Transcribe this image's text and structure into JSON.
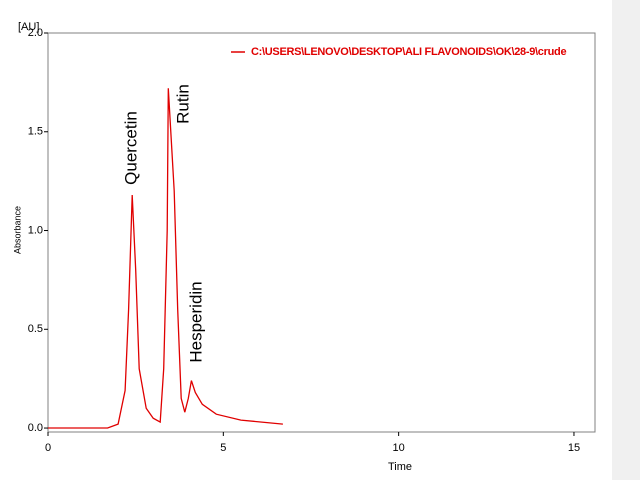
{
  "chart_data": {
    "type": "line",
    "y_unit": "[AU]",
    "y_label": "Absorbance",
    "x_label": "Time",
    "annotations": [
      "Quercetin",
      "Rutin",
      "Hesperidin"
    ],
    "x": [
      0,
      1.7,
      2.0,
      2.2,
      2.3,
      2.4,
      2.5,
      2.6,
      2.8,
      3.0,
      3.2,
      3.3,
      3.4,
      3.43,
      3.6,
      3.7,
      3.8,
      3.9,
      4.0,
      4.09,
      4.2,
      4.4,
      4.8,
      5.5,
      6.7
    ],
    "series": [
      {
        "name": "C:\\USERS\\LENOVO\\DESKTOP\\ALI FLAVONOIDS\\OK\\28-9\\crude",
        "color": "#e00000",
        "values": [
          0.0,
          0.0,
          0.02,
          0.19,
          0.6,
          1.18,
          0.8,
          0.3,
          0.1,
          0.05,
          0.03,
          0.3,
          1.0,
          1.72,
          1.2,
          0.6,
          0.15,
          0.08,
          0.15,
          0.24,
          0.18,
          0.12,
          0.07,
          0.04,
          0.02
        ]
      }
    ],
    "xlim": [
      0,
      15.6
    ],
    "ylim": [
      -0.02,
      2.0
    ],
    "xticks": [
      0,
      5,
      10,
      15
    ],
    "yticks": [
      {
        "value": 0,
        "label": "0.0"
      },
      {
        "value": 0.5,
        "label": "0.5"
      },
      {
        "value": 1,
        "label": "1.0"
      },
      {
        "value": 1.5,
        "label": "1.5"
      },
      {
        "value": 2,
        "label": "2.0"
      }
    ],
    "grid": false
  }
}
